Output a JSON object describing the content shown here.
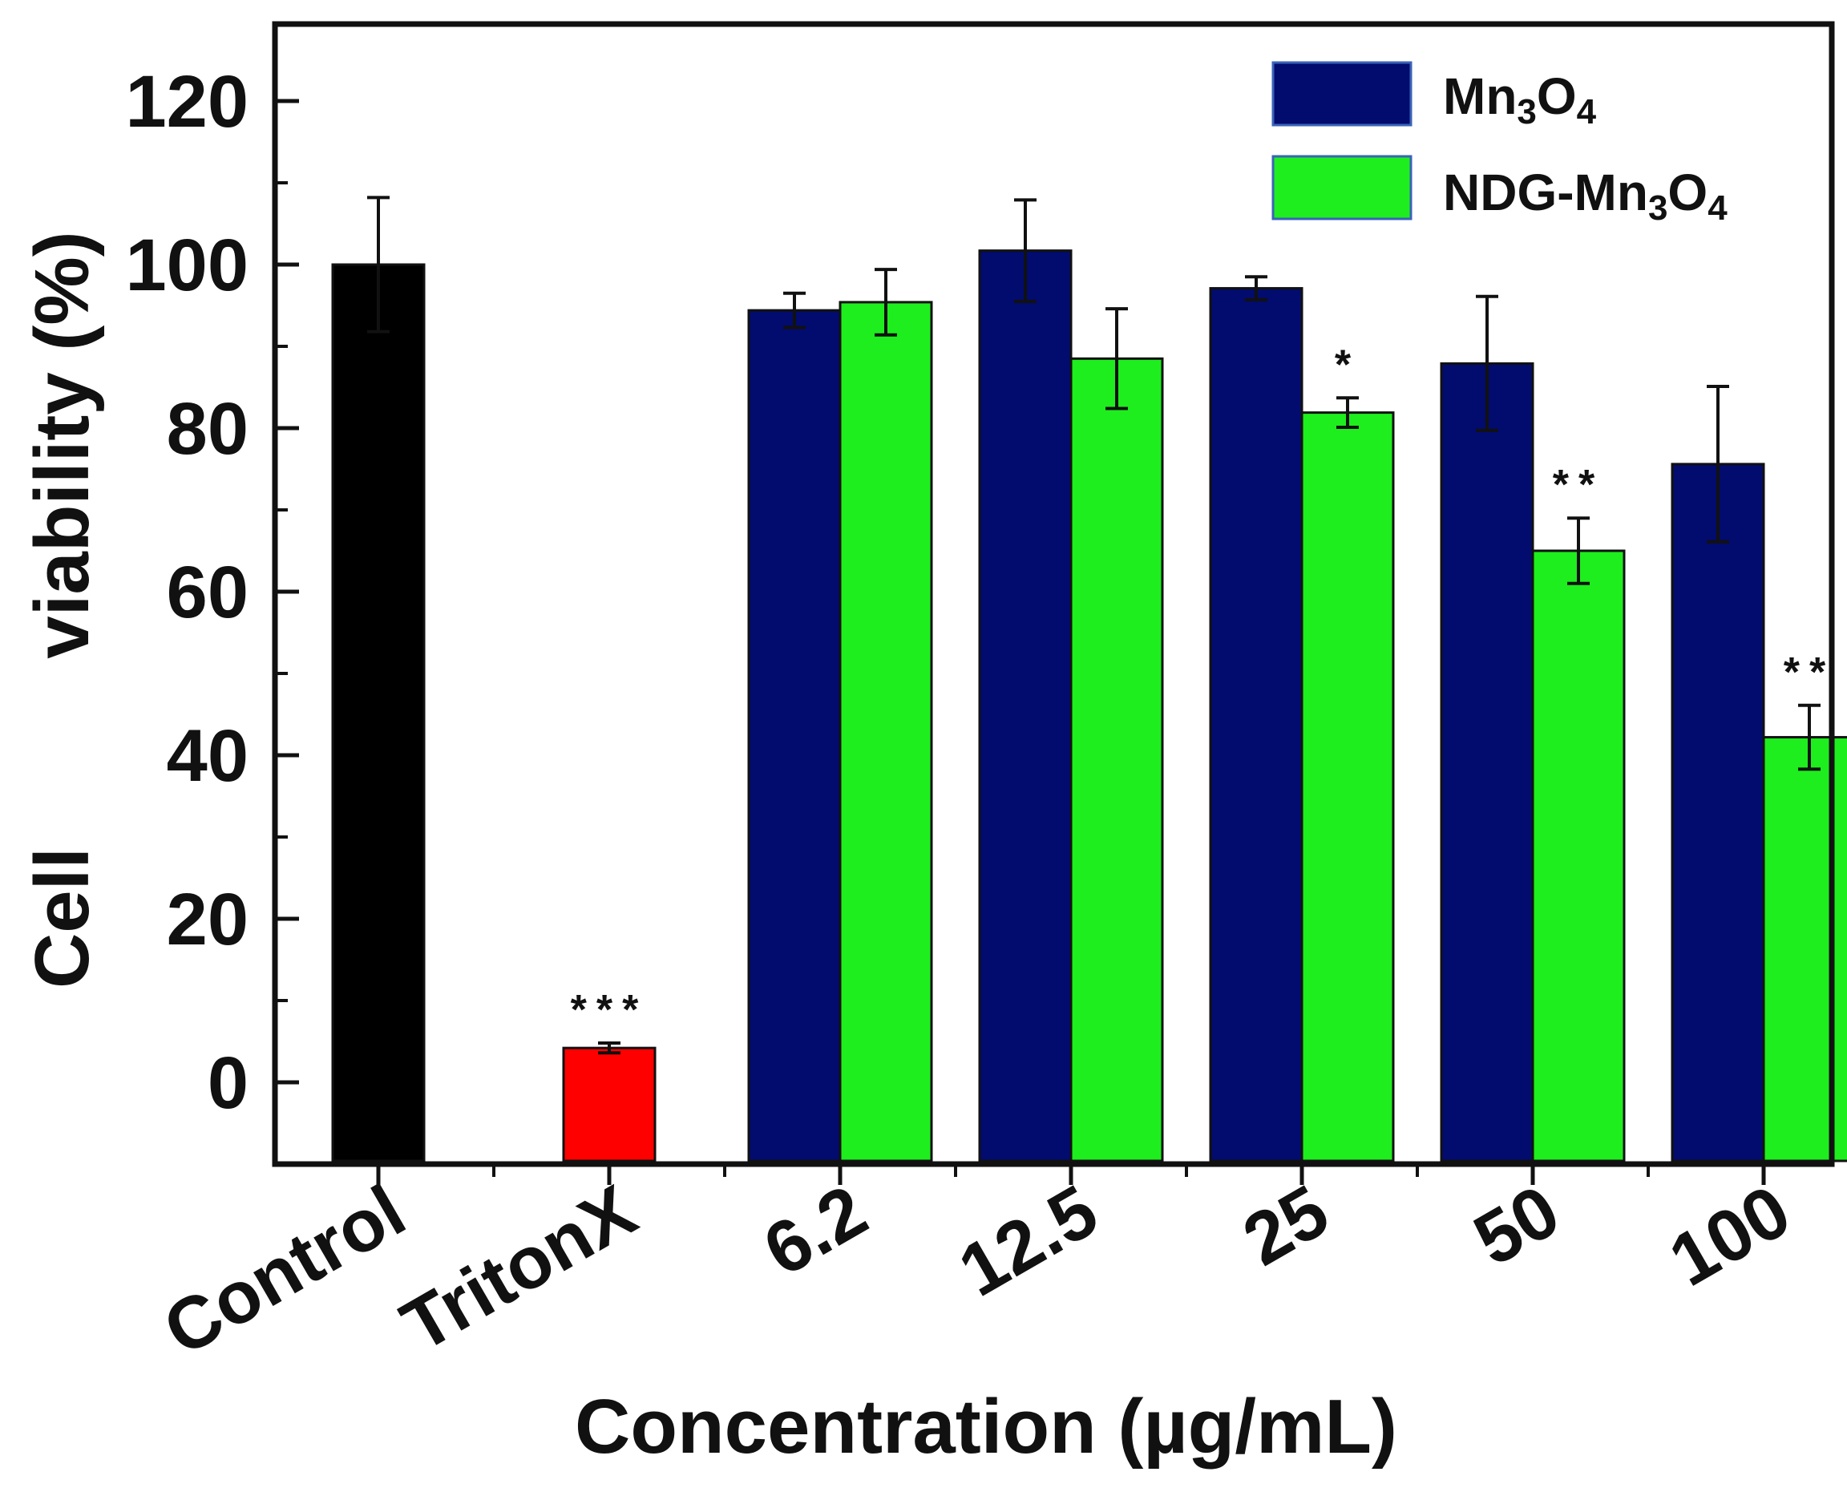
{
  "chart_data": {
    "type": "bar",
    "title": "",
    "xlabel": "Concentration (µg/mL)",
    "ylabel_parts": [
      "Cell",
      "viability (%)"
    ],
    "ylim": [
      -10,
      130
    ],
    "yticks": [
      0,
      20,
      40,
      60,
      80,
      100,
      120
    ],
    "categories": [
      "Control",
      "TritonX",
      "6.2",
      "12.5",
      "25",
      "50",
      "100"
    ],
    "controls": [
      {
        "name": "Control",
        "value": 100,
        "error": 8.2,
        "color": "#000000",
        "sig": ""
      },
      {
        "name": "TritonX",
        "value": 4.2,
        "error": 0.6,
        "color": "#ff0000",
        "sig": "***"
      }
    ],
    "series": [
      {
        "name": "Mn3O4",
        "legend_label": {
          "base": "Mn",
          "sub1": "3",
          "mid": "O",
          "sub2": "4"
        },
        "color": "#020b6e",
        "values": [
          null,
          null,
          94.4,
          101.7,
          97.1,
          87.9,
          75.6
        ],
        "errors": [
          null,
          null,
          2.1,
          6.2,
          1.4,
          8.2,
          9.5
        ],
        "sig": [
          "",
          "",
          "",
          "",
          "",
          "",
          ""
        ]
      },
      {
        "name": "NDG-Mn3O4",
        "legend_label": {
          "base": "NDG-Mn",
          "sub1": "3",
          "mid": "O",
          "sub2": "4"
        },
        "color": "#1eee1e",
        "values": [
          null,
          null,
          95.4,
          88.5,
          81.9,
          65.0,
          42.2
        ],
        "errors": [
          null,
          null,
          4.0,
          6.1,
          1.8,
          4.0,
          3.9
        ],
        "sig": [
          "",
          "",
          "",
          "",
          "*",
          "**",
          "**"
        ]
      }
    ],
    "legend_position": "top-right",
    "grid": false
  }
}
